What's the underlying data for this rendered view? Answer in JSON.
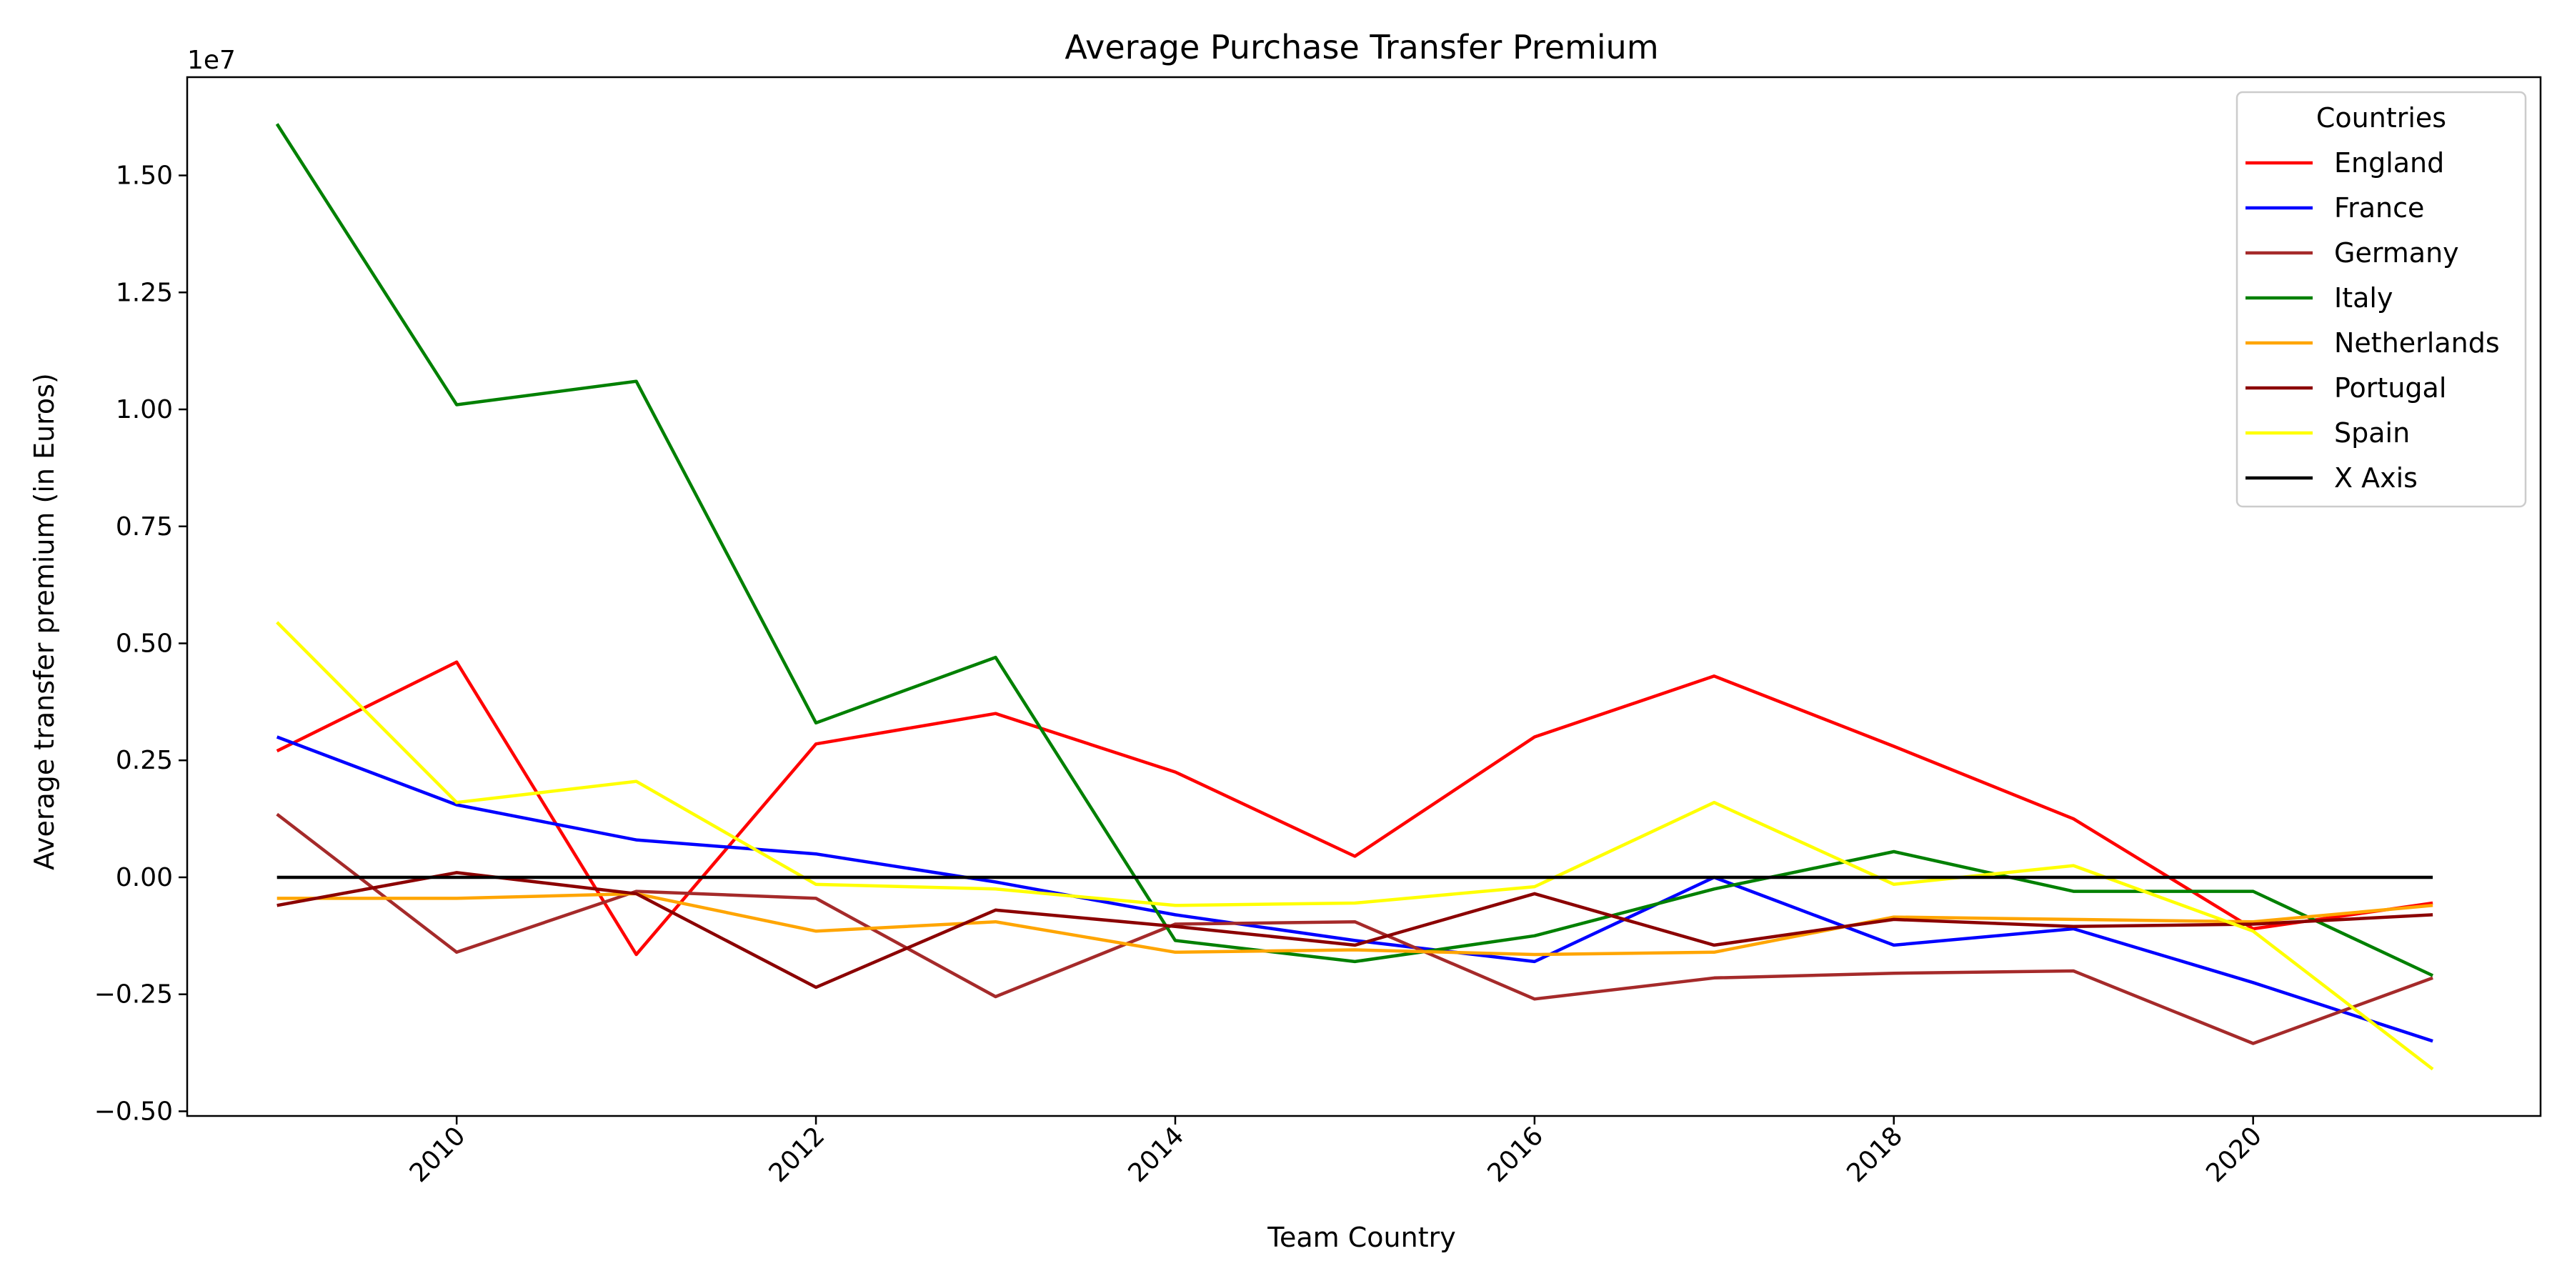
{
  "chart_data": {
    "type": "line",
    "title": "Average Purchase Transfer Premium",
    "xlabel": "Team Country",
    "ylabel": "Average transfer premium (in Euros)",
    "y_offset_label": "1e7",
    "xlim": [
      2008.5,
      2021.6
    ],
    "ylim": [
      -0.51,
      1.71
    ],
    "x_ticks": [
      2010,
      2012,
      2014,
      2016,
      2018,
      2020
    ],
    "x_tick_labels": [
      "2010",
      "2012",
      "2014",
      "2016",
      "2018",
      "2020"
    ],
    "y_ticks": [
      -0.5,
      -0.25,
      0.0,
      0.25,
      0.5,
      0.75,
      1.0,
      1.25,
      1.5
    ],
    "y_tick_labels": [
      "−0.50",
      "−0.25",
      "0.00",
      "0.25",
      "0.50",
      "0.75",
      "1.00",
      "1.25",
      "1.50"
    ],
    "x": [
      2009,
      2010,
      2011,
      2012,
      2013,
      2014,
      2015,
      2016,
      2017,
      2018,
      2019,
      2020,
      2021
    ],
    "legend_title": "Countries",
    "legend_position": "top-right",
    "grid": false,
    "series": [
      {
        "name": "England",
        "color": "#ff0000",
        "values": [
          0.27,
          0.46,
          -0.165,
          0.285,
          0.35,
          0.225,
          0.045,
          0.3,
          0.43,
          0.28,
          0.125,
          -0.11,
          -0.055
        ]
      },
      {
        "name": "France",
        "color": "#0000ff",
        "values": [
          0.3,
          0.155,
          0.08,
          0.05,
          -0.01,
          -0.08,
          -0.135,
          -0.18,
          0.0,
          -0.145,
          -0.11,
          -0.225,
          -0.35
        ]
      },
      {
        "name": "Germany",
        "color": "#a52a2a",
        "values": [
          0.135,
          -0.16,
          -0.03,
          -0.045,
          -0.255,
          -0.1,
          -0.095,
          -0.26,
          -0.215,
          -0.205,
          -0.2,
          -0.355,
          -0.215
        ]
      },
      {
        "name": "Italy",
        "color": "#008000",
        "values": [
          1.61,
          1.01,
          1.06,
          0.33,
          0.47,
          -0.135,
          -0.18,
          -0.125,
          -0.025,
          0.055,
          -0.03,
          -0.03,
          -0.21
        ]
      },
      {
        "name": "Netherlands",
        "color": "#ffa500",
        "values": [
          -0.045,
          -0.045,
          -0.035,
          -0.115,
          -0.095,
          -0.16,
          -0.155,
          -0.165,
          -0.16,
          -0.085,
          -0.09,
          -0.095,
          -0.06
        ]
      },
      {
        "name": "Portugal",
        "color": "#8b0000",
        "values": [
          -0.06,
          0.01,
          -0.035,
          -0.235,
          -0.07,
          -0.105,
          -0.145,
          -0.035,
          -0.145,
          -0.09,
          -0.105,
          -0.1,
          -0.08
        ]
      },
      {
        "name": "Spain",
        "color": "#ffff00",
        "values": [
          0.545,
          0.16,
          0.205,
          -0.015,
          -0.025,
          -0.06,
          -0.055,
          -0.02,
          0.16,
          -0.015,
          0.025,
          -0.115,
          -0.41
        ]
      },
      {
        "name": "X Axis",
        "color": "#000000",
        "values": [
          0,
          0,
          0,
          0,
          0,
          0,
          0,
          0,
          0,
          0,
          0,
          0,
          0
        ]
      }
    ]
  }
}
